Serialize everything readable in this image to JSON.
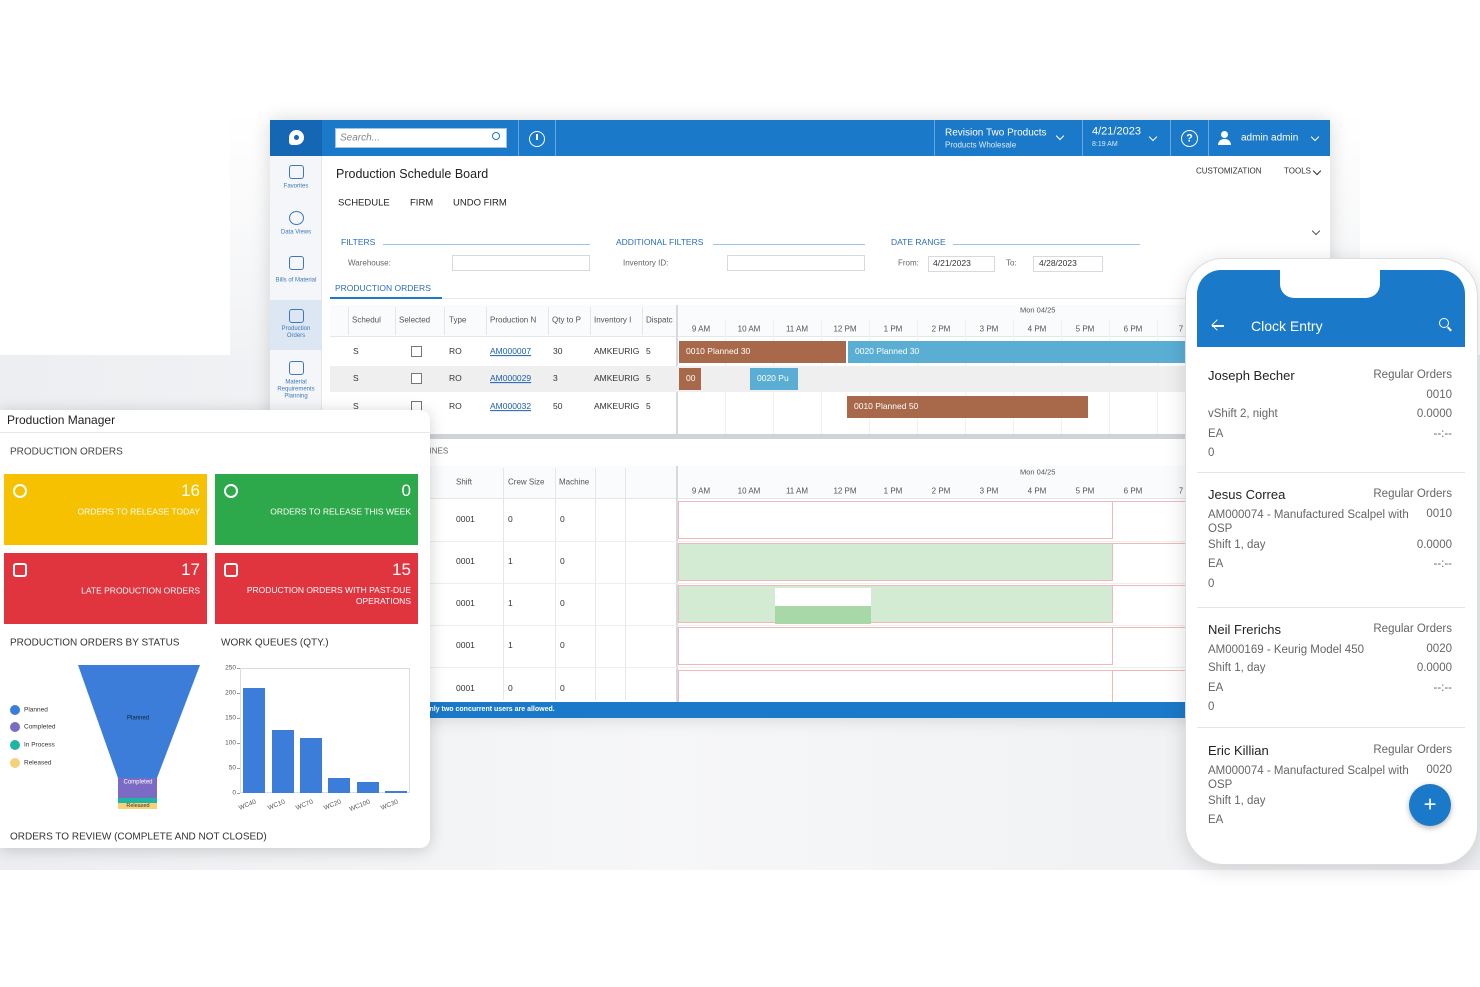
{
  "top_bar": {
    "search_placeholder": "Search...",
    "company": "Revision Two Products",
    "branch": "Products Wholesale",
    "date": "4/21/2023",
    "time": "8:19 AM",
    "help_icon": "?",
    "user": "admin admin"
  },
  "sidebar": [
    "Favorites",
    "Data Views",
    "Bills of Material",
    "Production Orders",
    "Material Requirements Planning"
  ],
  "screen": {
    "title": "Production Schedule Board",
    "actions": [
      "SCHEDULE",
      "FIRM",
      "UNDO FIRM"
    ],
    "links": [
      "CUSTOMIZATION",
      "TOOLS"
    ],
    "filters": {
      "title": "FILTERS",
      "warehouse_label": "Warehouse:",
      "additional_title": "ADDITIONAL FILTERS",
      "inventory_label": "Inventory ID:",
      "date_range_title": "DATE RANGE",
      "from_label": "From:",
      "from": "4/21/2023",
      "to_label": "To:",
      "to": "4/28/2023"
    },
    "orders_tab": "PRODUCTION ORDERS",
    "orders_columns": [
      "Schedul",
      "Selected",
      "Type",
      "Production N",
      "Qty to P",
      "Inventory I",
      "Dispatc"
    ],
    "orders": [
      {
        "schedule": "S",
        "type": "RO",
        "order": "AM000007",
        "qty": 30,
        "item": "AMKEURIG",
        "dispatch": 5
      },
      {
        "schedule": "S",
        "type": "RO",
        "order": "AM000029",
        "qty": 3,
        "item": "AMKEURIG",
        "dispatch": 5
      },
      {
        "schedule": "S",
        "type": "RO",
        "order": "AM000032",
        "qty": 50,
        "item": "AMKEURIG",
        "dispatch": 5
      }
    ],
    "timeline_day": "Mon 04/25",
    "hours": [
      "9 AM",
      "10 AM",
      "11 AM",
      "12 PM",
      "1 PM",
      "2 PM",
      "3 PM",
      "4 PM",
      "5 PM",
      "6 PM",
      "7"
    ],
    "order_bars": [
      "0010 Planned 30",
      "0020 Planned 30",
      "00",
      "0020 Pu",
      "0010 Planned 50"
    ],
    "machines_title": "MACHINES",
    "machine_columns": [
      "Shift",
      "Crew Size",
      "Machine"
    ],
    "machines": [
      {
        "shift": "0001",
        "crew": 0,
        "machine": 0
      },
      {
        "shift": "0001",
        "crew": 1,
        "machine": 0
      },
      {
        "shift": "0001",
        "crew": 1,
        "machine": 0
      },
      {
        "shift": "0001",
        "crew": 1,
        "machine": 0
      },
      {
        "shift": "0001",
        "crew": 0,
        "machine": 0
      }
    ],
    "status": "Only two concurrent users are allowed."
  },
  "dashboard": {
    "title": "Production Manager",
    "section": "PRODUCTION ORDERS",
    "tiles": [
      {
        "value": 16,
        "label": "ORDERS TO RELEASE TODAY",
        "color": "#f6c100"
      },
      {
        "value": 0,
        "label": "ORDERS TO RELEASE THIS WEEK",
        "color": "#2da84a"
      },
      {
        "value": 17,
        "label": "LATE PRODUCTION ORDERS",
        "color": "#e0343f"
      },
      {
        "value": 15,
        "label": "PRODUCTION ORDERS WITH PAST-DUE OPERATIONS",
        "color": "#e0343f"
      }
    ],
    "status_chart": {
      "title": "PRODUCTION ORDERS BY STATUS",
      "legend": [
        "Planned",
        "Completed",
        "In Process",
        "Released"
      ],
      "legend_colors": [
        "#3b7dd8",
        "#7b6bc4",
        "#1fb5a5",
        "#f5d27a"
      ],
      "funnel_labels": [
        "Planned",
        "Completed",
        "Released"
      ]
    },
    "work_queues": {
      "title": "WORK QUEUES (QTY.)",
      "categories": [
        "WC40",
        "WC10",
        "WC70",
        "WC20",
        "WC100",
        "WC30"
      ],
      "values": [
        210,
        127,
        110,
        30,
        22,
        5
      ],
      "color": "#3b7dd8",
      "ylim": [
        0,
        250
      ],
      "yticks": [
        0,
        50,
        100,
        150,
        200,
        250
      ]
    },
    "review_title": "ORDERS TO REVIEW (COMPLETE AND NOT CLOSED)"
  },
  "clock": {
    "title": "Clock Entry",
    "entries": [
      {
        "name": "Joseph Becher",
        "order_type": "Regular Orders",
        "operation": "0010",
        "shift": "vShift 2, night",
        "hours": "0.0000",
        "uom": "EA",
        "time": "--:--",
        "qty": 0
      },
      {
        "name": "Jesus Correa",
        "order_type": "Regular Orders",
        "item": "AM000074 - Manufactured Scalpel with OSP",
        "operation": "0010",
        "shift": "Shift 1, day",
        "hours": "0.0000",
        "uom": "EA",
        "time": "--:--",
        "qty": 0
      },
      {
        "name": "Neil Frerichs",
        "order_type": "Regular Orders",
        "item": "AM000169 - Keurig Model 450",
        "operation": "0020",
        "shift": "Shift 1, day",
        "hours": "0.0000",
        "uom": "EA",
        "time": "--:--",
        "qty": 0
      },
      {
        "name": "Eric Killian",
        "order_type": "Regular Orders",
        "item": "AM000074 - Manufactured Scalpel with OSP",
        "operation": "0020",
        "shift": "Shift 1, day",
        "uom": "EA"
      }
    ],
    "fab": "+"
  }
}
